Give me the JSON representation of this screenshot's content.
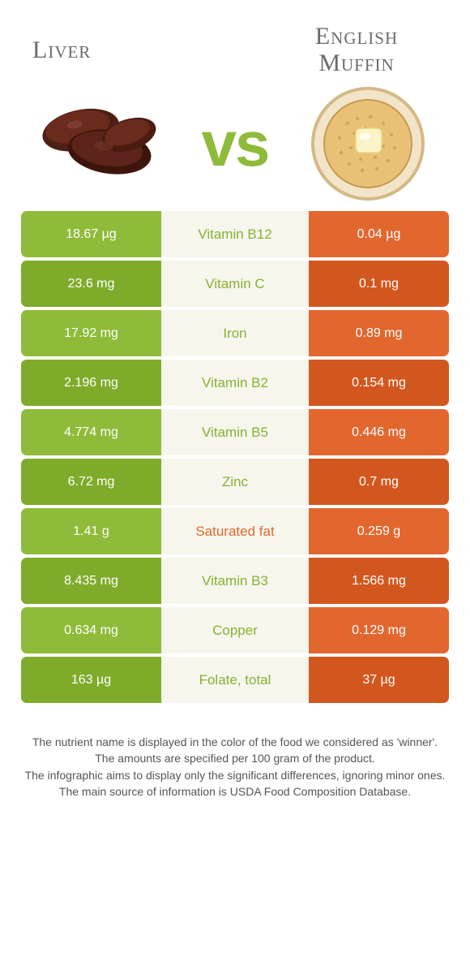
{
  "colors": {
    "green": "#8fbb3a",
    "green_dark": "#7fab2a",
    "orange": "#e2672f",
    "orange_dark": "#d2571f",
    "mid_bg": "#f6f6ed",
    "text_green": "#86b233",
    "text_orange": "#e2672f"
  },
  "left": {
    "title": "Liver"
  },
  "right": {
    "title": "English\nMuffin"
  },
  "vs": "vs",
  "rows": [
    {
      "left": "18.67 µg",
      "name": "Vitamin B12",
      "right": "0.04 µg",
      "winner": "left"
    },
    {
      "left": "23.6 mg",
      "name": "Vitamin C",
      "right": "0.1 mg",
      "winner": "left"
    },
    {
      "left": "17.92 mg",
      "name": "Iron",
      "right": "0.89 mg",
      "winner": "left"
    },
    {
      "left": "2.196 mg",
      "name": "Vitamin B2",
      "right": "0.154 mg",
      "winner": "left"
    },
    {
      "left": "4.774 mg",
      "name": "Vitamin B5",
      "right": "0.446 mg",
      "winner": "left"
    },
    {
      "left": "6.72 mg",
      "name": "Zinc",
      "right": "0.7 mg",
      "winner": "left"
    },
    {
      "left": "1.41 g",
      "name": "Saturated fat",
      "right": "0.259 g",
      "winner": "right"
    },
    {
      "left": "8.435 mg",
      "name": "Vitamin B3",
      "right": "1.566 mg",
      "winner": "left"
    },
    {
      "left": "0.634 mg",
      "name": "Copper",
      "right": "0.129 mg",
      "winner": "left"
    },
    {
      "left": "163 µg",
      "name": "Folate, total",
      "right": "37 µg",
      "winner": "left"
    }
  ],
  "footer": [
    "The nutrient name is displayed in the color of the food we considered as 'winner'.",
    "The amounts are specified per 100 gram of the product.",
    "The infographic aims to display only the significant differences, ignoring minor ones.",
    "The main source of information is USDA Food Composition Database."
  ]
}
